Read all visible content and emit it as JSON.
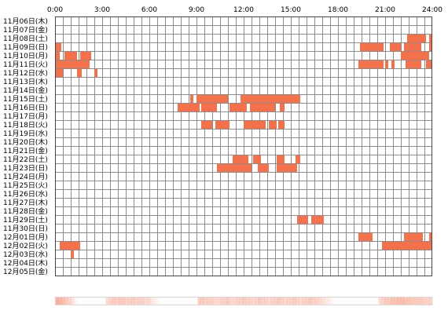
{
  "chart_data": {
    "type": "heatmap",
    "title": "",
    "xlabel": "",
    "ylabel": "",
    "x_range": [
      0,
      24
    ],
    "x_grid_step_hours": 0.5,
    "x_ticks": [
      "0:00",
      "3:00",
      "6:00",
      "9:00",
      "12:00",
      "15:00",
      "18:00",
      "21:00",
      "24:00"
    ],
    "days": [
      "11月06日(木)",
      "11月07日(金)",
      "11月08日(土)",
      "11月09日(日)",
      "11月10日(月)",
      "11月11日(火)",
      "11月12日(水)",
      "11月13日(木)",
      "11月14日(金)",
      "11月15日(土)",
      "11月16日(日)",
      "11月17日(月)",
      "11月18日(火)",
      "11月19日(水)",
      "11月20日(木)",
      "11月21日(金)",
      "11月22日(土)",
      "11月23日(日)",
      "11月24日(月)",
      "11月25日(火)",
      "11月26日(水)",
      "11月27日(木)",
      "11月28日(金)",
      "11月29日(土)",
      "11月30日(日)",
      "12月01日(月)",
      "12月02日(火)",
      "12月03日(水)",
      "12月04日(木)",
      "12月05日(金)"
    ],
    "activity_intervals_hours": [
      [],
      [],
      [
        [
          22.4,
          23.6
        ],
        [
          23.8,
          24.0
        ]
      ],
      [
        [
          0.0,
          0.4
        ],
        [
          19.4,
          20.9
        ],
        [
          21.3,
          22.0
        ],
        [
          22.2,
          23.3
        ],
        [
          23.8,
          24.0
        ]
      ],
      [
        [
          0.0,
          0.3
        ],
        [
          0.6,
          1.4
        ],
        [
          1.6,
          2.3
        ],
        [
          22.0,
          23.8
        ]
      ],
      [
        [
          0.0,
          2.2
        ],
        [
          19.3,
          20.9
        ],
        [
          21.0,
          21.2
        ],
        [
          21.4,
          21.6
        ],
        [
          22.3,
          23.3
        ],
        [
          23.6,
          24.0
        ]
      ],
      [
        [
          0.0,
          0.5
        ],
        [
          1.4,
          1.7
        ],
        [
          2.5,
          2.7
        ]
      ],
      [],
      [],
      [
        [
          8.6,
          8.8
        ],
        [
          9.0,
          11.0
        ],
        [
          11.8,
          15.6
        ]
      ],
      [
        [
          7.8,
          9.2
        ],
        [
          9.3,
          10.3
        ],
        [
          11.1,
          12.2
        ],
        [
          12.4,
          14.0
        ],
        [
          14.3,
          14.6
        ]
      ],
      [],
      [
        [
          9.3,
          10.0
        ],
        [
          10.2,
          11.1
        ],
        [
          12.0,
          13.4
        ],
        [
          13.6,
          14.1
        ],
        [
          14.2,
          14.6
        ]
      ],
      [],
      [],
      [],
      [
        [
          11.3,
          12.3
        ],
        [
          12.6,
          13.1
        ],
        [
          14.1,
          14.6
        ],
        [
          15.3,
          15.6
        ]
      ],
      [
        [
          10.3,
          12.5
        ],
        [
          12.9,
          13.6
        ],
        [
          14.1,
          15.4
        ]
      ],
      [],
      [],
      [],
      [],
      [],
      [
        [
          15.4,
          16.1
        ],
        [
          16.3,
          17.1
        ]
      ],
      [],
      [
        [
          19.3,
          20.2
        ],
        [
          22.2,
          23.4
        ],
        [
          23.8,
          24.0
        ]
      ],
      [
        [
          0.3,
          1.6
        ],
        [
          20.8,
          24.0
        ]
      ],
      [
        [
          1.0,
          1.2
        ]
      ],
      [],
      []
    ],
    "summary_density": [
      0.55,
      0.5,
      0.45,
      0.35,
      0.3,
      0.2,
      0.05,
      0,
      0,
      0,
      0,
      0,
      0,
      0,
      0,
      0,
      0.25,
      0.3,
      0.35,
      0.3,
      0.35,
      0.35,
      0.3,
      0.3,
      0.35,
      0.3,
      0.3,
      0.3,
      0.25,
      0.25,
      0.15,
      0.1,
      0.05,
      0,
      0,
      0,
      0,
      0,
      0,
      0,
      0,
      0,
      0,
      0,
      0,
      0.35,
      0.35,
      0.3,
      0.3,
      0.3,
      0.25,
      0.25,
      0.3,
      0.3,
      0.35,
      0.25,
      0.25,
      0.3,
      0.3,
      0.35,
      0.3,
      0.3,
      0.25,
      0.3,
      0.35,
      0.3,
      0.3,
      0.25,
      0.3,
      0.3,
      0.35,
      0.3,
      0.25,
      0.3,
      0.3,
      0.35,
      0.3,
      0.25,
      0.3,
      0.3,
      0.35,
      0.3,
      0.3,
      0.25,
      0.2,
      0.15,
      0.1,
      0.05,
      0,
      0,
      0,
      0,
      0,
      0,
      0,
      0,
      0,
      0,
      0,
      0,
      0,
      0,
      0.25,
      0.3,
      0.35,
      0.35,
      0.4,
      0.4,
      0.45,
      0.45,
      0.4,
      0.4,
      0.35,
      0.35,
      0.35,
      0.35,
      0.3,
      0.3,
      0.3
    ],
    "colors": {
      "activity": "#f4714c",
      "grid_line": "#8c8c8c",
      "frame": "#444444",
      "summary": "#f4714c"
    }
  }
}
